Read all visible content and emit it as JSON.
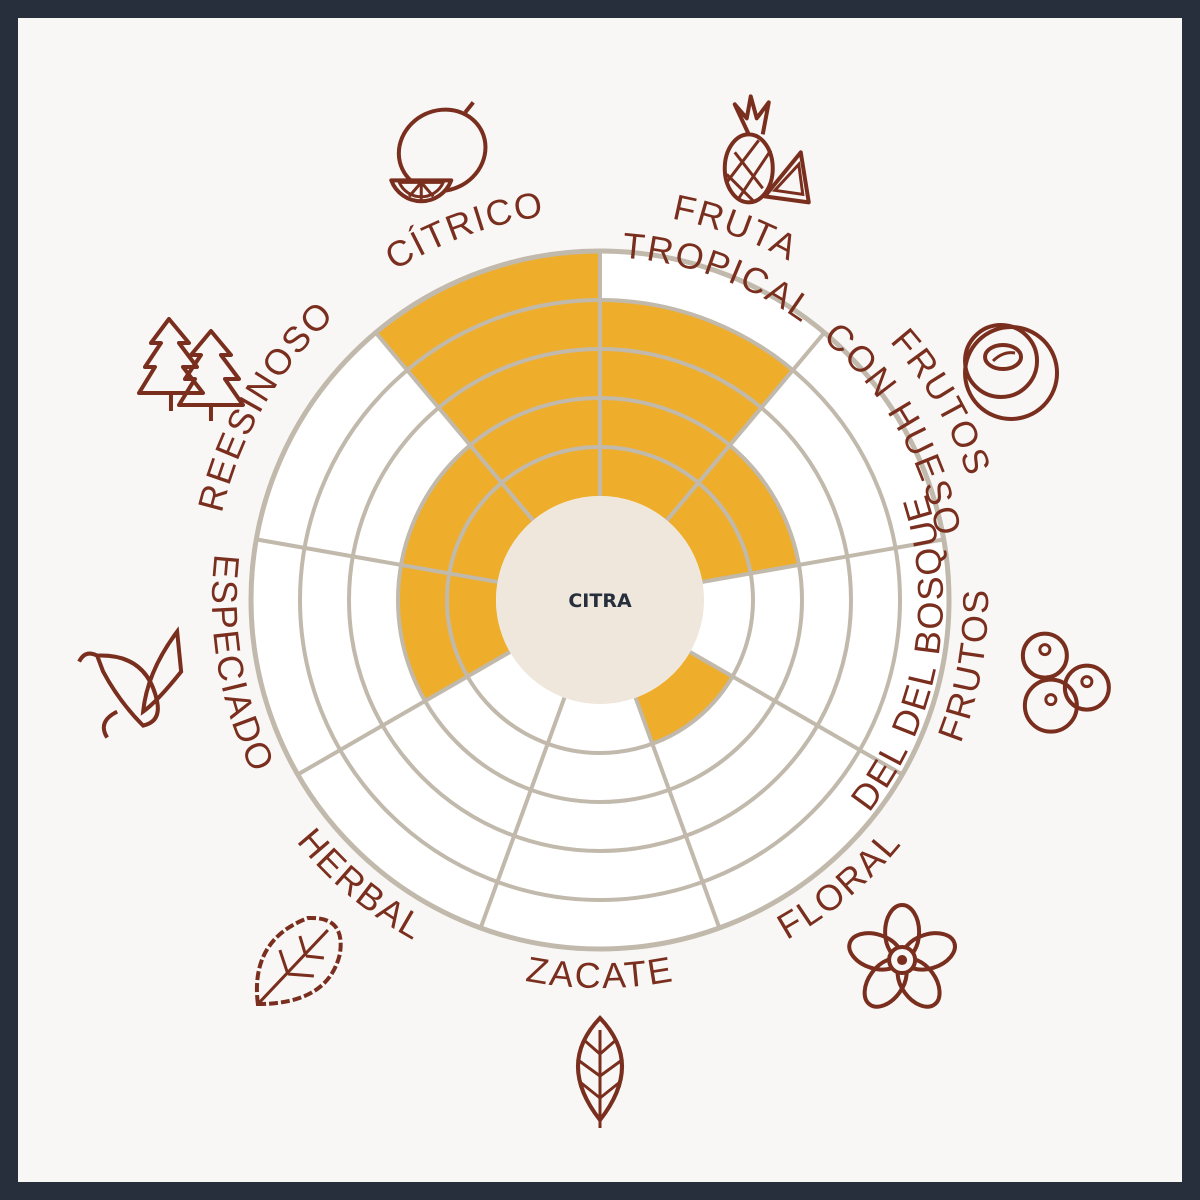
{
  "colors": {
    "frame": "#262f3b",
    "background": "#f8f7f5",
    "fill": "#eeae2c",
    "grid": "#c1b9ab",
    "label": "#7a2e1e",
    "center": "#efe7dc"
  },
  "chart_data": {
    "type": "radial-bar",
    "title": "CITRA",
    "max": 5,
    "categories": [
      {
        "label": "FRUTA TROPICAL",
        "lines": [
          "FRUTA",
          "TROPICAL"
        ],
        "value": 4,
        "icon": "pineapple-watermelon-icon"
      },
      {
        "label": "FRUTOS CON HUESO",
        "lines": [
          "FRUTOS",
          "CON HUESO"
        ],
        "value": 2,
        "icon": "peach-icon"
      },
      {
        "label": "FRUTOS DEL DEL BOSQUE",
        "lines": [
          "FRUTOS",
          "DEL DEL BOSQUE"
        ],
        "value": 0,
        "icon": "berries-icon"
      },
      {
        "label": "FLORAL",
        "lines": [
          "FLORAL"
        ],
        "value": 1,
        "icon": "flower-icon"
      },
      {
        "label": "ZACATE",
        "lines": [
          "ZACATE"
        ],
        "value": 0,
        "icon": "leaf-icon"
      },
      {
        "label": "HERBAL",
        "lines": [
          "HERBAL"
        ],
        "value": 0,
        "icon": "herb-leaf-icon"
      },
      {
        "label": "ESPECIADO",
        "lines": [
          "ESPECIADO"
        ],
        "value": 2,
        "icon": "chili-pepper-icon"
      },
      {
        "label": "REESINOSO",
        "lines": [
          "REESINOSO"
        ],
        "value": 2,
        "icon": "pine-trees-icon"
      },
      {
        "label": "CÍTRICO",
        "lines": [
          "CÍTRICO"
        ],
        "value": 5,
        "icon": "lemon-icon"
      }
    ]
  }
}
